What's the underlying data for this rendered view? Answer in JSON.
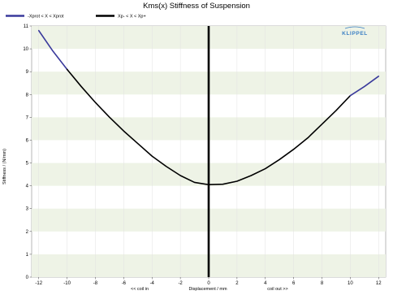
{
  "chart_data": {
    "type": "line",
    "title": "Kms(x) Stiffness of Suspension",
    "xlabel": "Displacement / mm",
    "ylabel": "Stiffness / (N/mm)",
    "x_note_left": "<< coil in",
    "x_note_right": "coil out >>",
    "logo": "KLIPPEL",
    "xlim": [
      -12.5,
      12.5
    ],
    "ylim": [
      0,
      11
    ],
    "x_ticks": [
      -12,
      -10,
      -8,
      -6,
      -4,
      -2,
      0,
      2,
      4,
      6,
      8,
      10,
      12
    ],
    "y_ticks": [
      0,
      1,
      2,
      3,
      4,
      5,
      6,
      7,
      8,
      9,
      10,
      11
    ],
    "grid": "alternating horizontal bands",
    "legend_position": "top-left",
    "series": [
      {
        "name": "-Xprot < X < Xprot",
        "color": "#3a3a9c",
        "x": [
          -12.0,
          -11.0,
          -10.0
        ],
        "y": [
          10.8,
          9.9,
          9.1
        ]
      },
      {
        "name": "Xp- < X < Xp+",
        "color": "#000000",
        "x": [
          -10.0,
          -9.0,
          -8.0,
          -7.0,
          -6.0,
          -5.0,
          -4.0,
          -3.0,
          -2.0,
          -1.0,
          0.0,
          1.0,
          2.0,
          3.0,
          4.0,
          5.0,
          6.0,
          7.0,
          8.0,
          9.0,
          10.0
        ],
        "y": [
          9.1,
          8.35,
          7.65,
          7.0,
          6.4,
          5.85,
          5.3,
          4.85,
          4.45,
          4.15,
          4.05,
          4.07,
          4.2,
          4.45,
          4.75,
          5.15,
          5.6,
          6.1,
          6.7,
          7.3,
          7.95
        ]
      },
      {
        "name": "",
        "color": "#3a3a9c",
        "x": [
          10.0,
          11.0,
          12.0
        ],
        "y": [
          7.95,
          8.35,
          8.8
        ]
      }
    ],
    "vertical_line_x": 0
  }
}
